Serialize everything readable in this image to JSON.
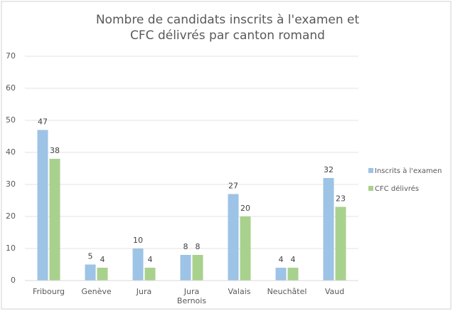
{
  "chart_data": {
    "type": "bar",
    "title": [
      "Nombre de candidats inscrits à l'examen et",
      "CFC délivrés par canton romand"
    ],
    "categories": [
      "Fribourg",
      "Genève",
      "Jura",
      "Jura Bernois",
      "Valais",
      "Neuchâtel",
      "Vaud"
    ],
    "series": [
      {
        "name": "Inscrits à l'examen",
        "color": "#9dc3e6",
        "values": [
          47,
          5,
          10,
          8,
          27,
          4,
          32
        ]
      },
      {
        "name": "CFC délivrés",
        "color": "#a9d18e",
        "values": [
          38,
          4,
          4,
          8,
          20,
          4,
          23
        ]
      }
    ],
    "ylim": [
      0,
      70
    ],
    "yticks": [
      0,
      10,
      20,
      30,
      40,
      50,
      60,
      70
    ],
    "grid": true,
    "legend": "right"
  }
}
